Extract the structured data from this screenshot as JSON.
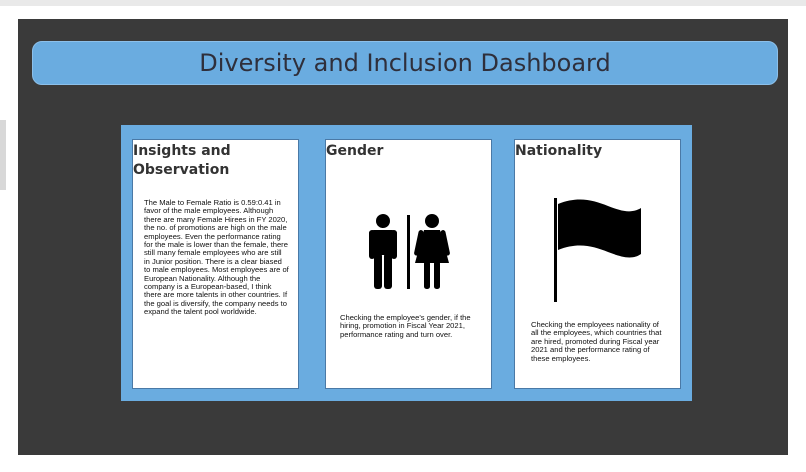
{
  "dashboard": {
    "title": "Diversity and Inclusion Dashboard"
  },
  "cards": {
    "insights": {
      "title": "Insights and Observation",
      "body": "The Male to Female Ratio is 0.59:0.41 in favor of the male employees. Although there are many Female Hirees in FY 2020, the no. of promotions are high on the male employees. Even the performance rating for the male is lower than the female, there still many female employees who are still in Junior position. There is a clear biased to male employees. Most employees are of European Nationality. Although the company is a European-based, I think there are more talents in other countries. If the goal is diversify, the company needs to expand the talent pool worldwide."
    },
    "gender": {
      "title": "Gender",
      "icon": "male-female-restroom-icon",
      "body": "Checking the employee's gender, if the hiring, promotion in Fiscal Year 2021, performance rating and turn over."
    },
    "nationality": {
      "title": "Nationality",
      "icon": "flag-icon",
      "body": "Checking the employees nationality of all the employees, which countries that are hired, promoted during Fiscal year 2021 and the performance rating of these employees."
    }
  },
  "colors": {
    "canvas": "#3a3a3a",
    "accent": "#6aace0",
    "card": "#ffffff"
  }
}
